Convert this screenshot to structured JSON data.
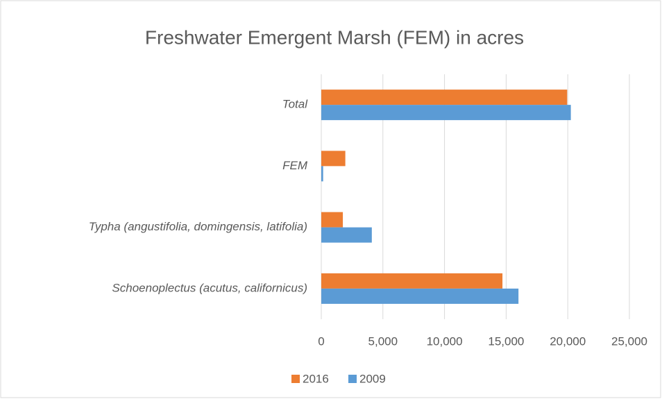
{
  "chart_data": {
    "type": "barh",
    "title": "Freshwater Emergent Marsh (FEM) in acres",
    "categories": [
      "Schoenoplectus (acutus, californicus)",
      "Typha (angustifolia, domingensis, latifolia)",
      "FEM",
      "Total"
    ],
    "series": [
      {
        "name": "2016",
        "color": "#ed7d31",
        "values": [
          14700,
          1750,
          1950,
          19950
        ]
      },
      {
        "name": "2009",
        "color": "#5b9bd5",
        "values": [
          16000,
          4100,
          150,
          20250
        ]
      }
    ],
    "xlim": [
      0,
      25000
    ],
    "xticks": [
      0,
      {
        "value": 5000,
        "label": "5,000"
      },
      {
        "value": 10000,
        "label": "10,000"
      },
      {
        "value": 15000,
        "label": "15,000"
      },
      {
        "value": 20000,
        "label": "20,000"
      },
      {
        "value": 25000,
        "label": "25,000"
      }
    ],
    "grid": true,
    "legend": "bottom"
  }
}
